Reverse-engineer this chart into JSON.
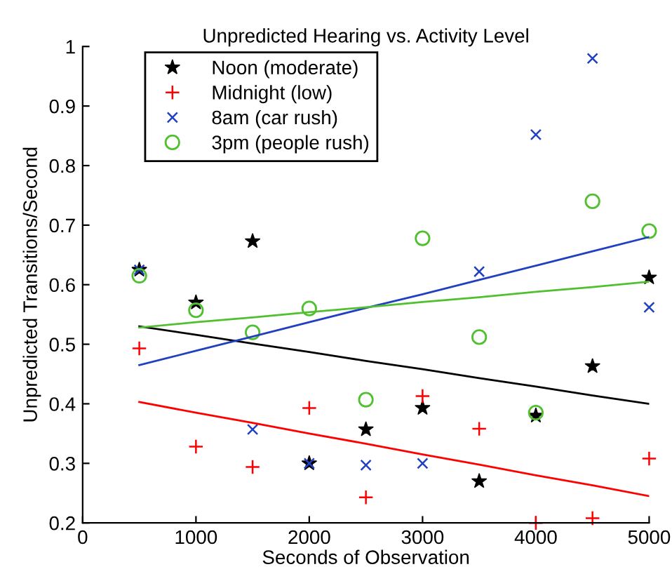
{
  "chart_data": {
    "type": "scatter",
    "title": "Unpredicted Hearing vs. Activity Level",
    "xlabel": "Seconds of Observation",
    "ylabel": "Unpredicted Transitions/Second",
    "xlim": [
      0,
      5000
    ],
    "xticks": [
      0,
      1000,
      2000,
      3000,
      4000,
      5000
    ],
    "ylim": [
      0.2,
      1
    ],
    "yticks": [
      0.2,
      0.3,
      0.4,
      0.5,
      0.6,
      0.7,
      0.8,
      0.9,
      1
    ],
    "x": [
      500,
      1000,
      1500,
      2000,
      2500,
      3000,
      3500,
      4000,
      4500,
      5000
    ],
    "grid": false,
    "legend": "top left",
    "series": [
      {
        "name": "Noon (moderate)",
        "color": "#000000",
        "marker": "star",
        "values": [
          0.625,
          0.57,
          0.673,
          0.3,
          0.357,
          0.393,
          0.27,
          0.38,
          0.463,
          0.612
        ]
      },
      {
        "name": "Midnight (low)",
        "color": "#ff0000",
        "marker": "plus",
        "values": [
          0.493,
          0.328,
          0.294,
          0.393,
          0.243,
          0.413,
          0.358,
          0.2,
          0.208,
          0.308
        ]
      },
      {
        "name": "8am (car rush)",
        "color": "#2040c0",
        "marker": "cross",
        "values": [
          0.625,
          null,
          0.357,
          0.3,
          0.297,
          0.3,
          0.622,
          0.852,
          0.98,
          0.562
        ]
      },
      {
        "name": "3pm (people rush)",
        "color": "#50c030",
        "marker": "circle",
        "values": [
          0.615,
          0.557,
          0.52,
          0.56,
          0.407,
          0.678,
          0.512,
          0.385,
          0.74,
          0.69
        ]
      },
      {
        "type": "line",
        "color": "#000000",
        "values": [
          0.53,
          0.516,
          0.501,
          0.487,
          0.472,
          0.458,
          0.443,
          0.429,
          0.414,
          0.4
        ]
      },
      {
        "type": "line",
        "color": "#ff0000",
        "values": [
          0.403,
          0.385,
          0.368,
          0.35,
          0.333,
          0.315,
          0.298,
          0.28,
          0.263,
          0.245
        ]
      },
      {
        "type": "line",
        "color": "#2040c0",
        "values": [
          0.465,
          0.489,
          0.513,
          0.537,
          0.561,
          0.584,
          0.608,
          0.632,
          0.656,
          0.68
        ]
      },
      {
        "type": "line",
        "color": "#50c030",
        "values": [
          0.528,
          0.537,
          0.545,
          0.554,
          0.562,
          0.571,
          0.579,
          0.588,
          0.596,
          0.605
        ]
      }
    ]
  }
}
